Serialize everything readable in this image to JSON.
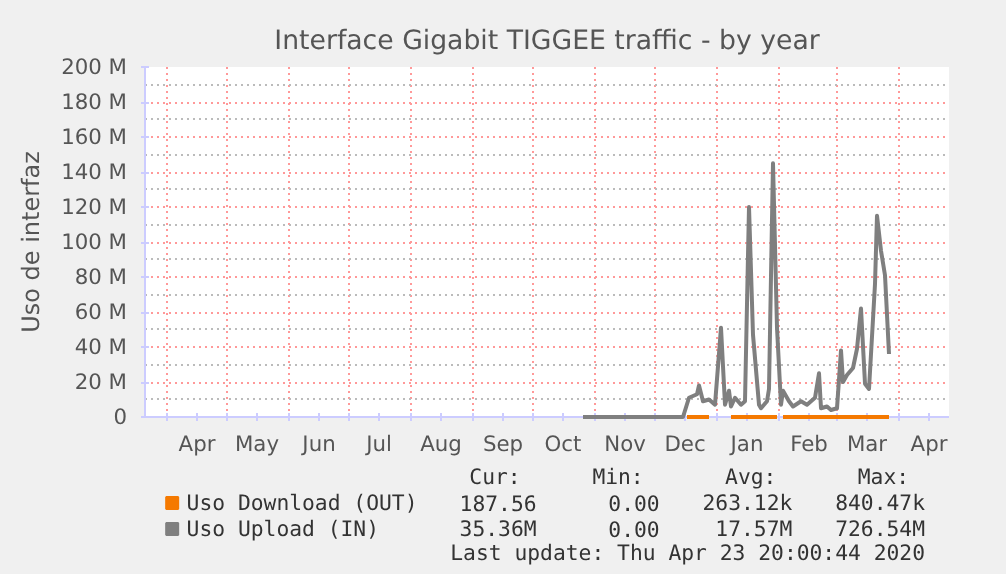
{
  "chart_data": {
    "type": "line",
    "title": "Interface Gigabit TIGGEE traffic - by year",
    "ylabel": "Uso de interfaz",
    "xlim": [
      "2019-03-21",
      "2020-04-26"
    ],
    "ylim": [
      0,
      200000000
    ],
    "yticks": [
      0,
      {
        "value": 20000000,
        "label": "20 M"
      },
      {
        "value": 40000000,
        "label": "40 M"
      },
      {
        "value": 60000000,
        "label": "60 M"
      },
      {
        "value": 80000000,
        "label": "80 M"
      },
      {
        "value": 100000000,
        "label": "100 M"
      },
      {
        "value": 120000000,
        "label": "120 M"
      },
      {
        "value": 140000000,
        "label": "140 M"
      },
      {
        "value": 160000000,
        "label": "160 M"
      },
      {
        "value": 180000000,
        "label": "180 M"
      },
      {
        "value": 200000000,
        "label": "200 M"
      }
    ],
    "xticks": [
      {
        "value": "2019-04-01",
        "label": null
      },
      {
        "value": "2019-04-16",
        "label": "Apr"
      },
      {
        "value": "2019-05-01",
        "label": null
      },
      {
        "value": "2019-05-16",
        "label": "May"
      },
      {
        "value": "2019-06-01",
        "label": null
      },
      {
        "value": "2019-06-16",
        "label": "Jun"
      },
      {
        "value": "2019-07-01",
        "label": null
      },
      {
        "value": "2019-07-16",
        "label": "Jul"
      },
      {
        "value": "2019-08-01",
        "label": null
      },
      {
        "value": "2019-08-16",
        "label": "Aug"
      },
      {
        "value": "2019-09-01",
        "label": null
      },
      {
        "value": "2019-09-16",
        "label": "Sep"
      },
      {
        "value": "2019-10-01",
        "label": null
      },
      {
        "value": "2019-10-16",
        "label": "Oct"
      },
      {
        "value": "2019-11-01",
        "label": null
      },
      {
        "value": "2019-11-16",
        "label": "Nov"
      },
      {
        "value": "2019-12-01",
        "label": null
      },
      {
        "value": "2019-12-16",
        "label": "Dec"
      },
      {
        "value": "2020-01-01",
        "label": null
      },
      {
        "value": "2020-01-16",
        "label": "Jan"
      },
      {
        "value": "2020-02-01",
        "label": null
      },
      {
        "value": "2020-02-16",
        "label": "Feb"
      },
      {
        "value": "2020-03-01",
        "label": null
      },
      {
        "value": "2020-03-16",
        "label": "Mar"
      },
      {
        "value": "2020-04-01",
        "label": null
      },
      {
        "value": "2020-04-16",
        "label": "Apr"
      }
    ],
    "grid": true,
    "legend": "bottom",
    "line_style": "solid",
    "series": [
      {
        "name": "Uso Download (OUT)",
        "color": "#f57900",
        "x": [
          "2019-12-17",
          "2019-12-28",
          "2019-12-29",
          "2020-01-08",
          "2020-01-31",
          "2020-02-01",
          "2020-02-03",
          "2020-03-27"
        ],
        "values": [
          0,
          0,
          null,
          0,
          0,
          null,
          0,
          0
        ]
      },
      {
        "name": "Uso Upload (IN)",
        "color": "#7f7f7f",
        "x": [
          "2019-10-26",
          "2019-12-15",
          "2019-12-18",
          "2019-12-22",
          "2019-12-23",
          "2019-12-25",
          "2019-12-28",
          "2019-12-31",
          "2020-01-03",
          "2020-01-05",
          "2020-01-07",
          "2020-01-08",
          "2020-01-10",
          "2020-01-13",
          "2020-01-15",
          "2020-01-17",
          "2020-01-19",
          "2020-01-22",
          "2020-01-23",
          "2020-01-26",
          "2020-01-27",
          "2020-01-29",
          "2020-01-31",
          "2020-02-02",
          "2020-02-03",
          "2020-02-06",
          "2020-02-08",
          "2020-02-12",
          "2020-02-15",
          "2020-02-19",
          "2020-02-21",
          "2020-02-22",
          "2020-02-25",
          "2020-02-27",
          "2020-03-01",
          "2020-03-03",
          "2020-03-04",
          "2020-03-06",
          "2020-03-09",
          "2020-03-11",
          "2020-03-13",
          "2020-03-15",
          "2020-03-17",
          "2020-03-20",
          "2020-03-21",
          "2020-03-23",
          "2020-03-25",
          "2020-03-27"
        ],
        "values": [
          0,
          0,
          11000000,
          13000000,
          18000000,
          9000000,
          10000000,
          7000000,
          51000000,
          7000000,
          15000000,
          6000000,
          11000000,
          7000000,
          9000000,
          120000000,
          47000000,
          7000000,
          5000000,
          9000000,
          16000000,
          145000000,
          51000000,
          7000000,
          15000000,
          9000000,
          6000000,
          9000000,
          7000000,
          11000000,
          25000000,
          5000000,
          6000000,
          4000000,
          5000000,
          38000000,
          20000000,
          24000000,
          28000000,
          39000000,
          62000000,
          19000000,
          16000000,
          76000000,
          115000000,
          95000000,
          81000000,
          36000000
        ]
      }
    ],
    "annotations": [
      "Cur:",
      "Min:",
      "Avg:",
      "Max:",
      "187.56",
      "0.00",
      "263.12k",
      "840.47k",
      "35.36M",
      "0.00",
      "17.57M",
      "726.54M",
      "Last update: Thu Apr 23 20:00:44 2020"
    ]
  }
}
